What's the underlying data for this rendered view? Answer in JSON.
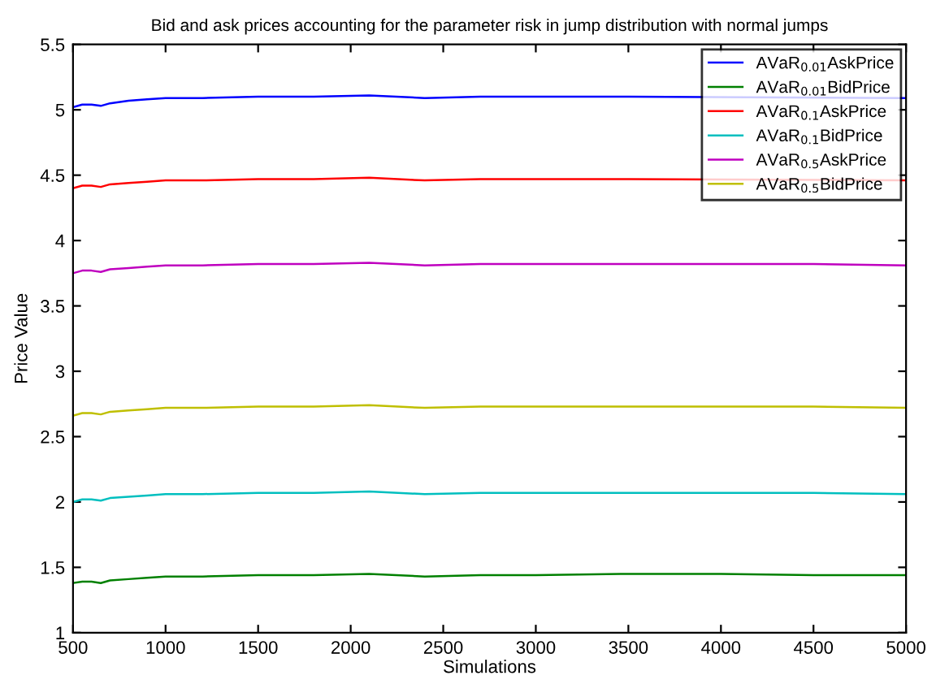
{
  "chart_data": {
    "type": "line",
    "title": "Bid and ask prices accounting for the parameter risk in jump distribution with normal jumps",
    "xlabel": "Simulations",
    "ylabel": "Price Value",
    "x": [
      500,
      550,
      600,
      650,
      700,
      800,
      900,
      1000,
      1200,
      1500,
      1800,
      2100,
      2400,
      2700,
      3000,
      3500,
      4000,
      4500,
      5000
    ],
    "series": [
      {
        "name": "AVaR$_{0.01}$AskPrice",
        "color": "#0000ff",
        "x": [
          500,
          550,
          600,
          650,
          700,
          800,
          900,
          1000,
          1200,
          1500,
          1800,
          2100,
          2400,
          2700,
          3000,
          3500,
          5000
        ],
        "values": [
          5.02,
          5.04,
          5.04,
          5.03,
          5.05,
          5.07,
          5.08,
          5.09,
          5.09,
          5.1,
          5.1,
          5.11,
          5.09,
          5.1,
          5.1,
          5.1,
          5.09
        ]
      },
      {
        "name": "AVaR$_{0.01}$BidPrice",
        "color": "#008000",
        "values": [
          1.38,
          1.39,
          1.39,
          1.38,
          1.4,
          1.41,
          1.42,
          1.43,
          1.43,
          1.44,
          1.44,
          1.45,
          1.43,
          1.44,
          1.44,
          1.45,
          1.45,
          1.44,
          1.44
        ]
      },
      {
        "name": "AVaR$_{0.1}$AskPrice",
        "color": "#ff0000",
        "x": [
          500,
          550,
          600,
          650,
          700,
          800,
          900,
          1000,
          1200,
          1500,
          1800,
          2100,
          2400,
          2700,
          3000,
          3500,
          5000
        ],
        "values": [
          4.4,
          4.42,
          4.42,
          4.41,
          4.43,
          4.44,
          4.45,
          4.46,
          4.46,
          4.47,
          4.47,
          4.48,
          4.46,
          4.47,
          4.47,
          4.47,
          4.46
        ]
      },
      {
        "name": "AVaR$_{0.1}$BidPrice",
        "color": "#00bfbf",
        "values": [
          2.0,
          2.02,
          2.02,
          2.01,
          2.03,
          2.04,
          2.05,
          2.06,
          2.06,
          2.07,
          2.07,
          2.08,
          2.06,
          2.07,
          2.07,
          2.07,
          2.07,
          2.07,
          2.06
        ]
      },
      {
        "name": "AVaR$_{0.5}$AskPrice",
        "color": "#bf00bf",
        "values": [
          3.75,
          3.77,
          3.77,
          3.76,
          3.78,
          3.79,
          3.8,
          3.81,
          3.81,
          3.82,
          3.82,
          3.83,
          3.81,
          3.82,
          3.82,
          3.82,
          3.82,
          3.82,
          3.81
        ]
      },
      {
        "name": "AVaR$_{0.5}$BidPrice",
        "color": "#bfbf00",
        "values": [
          2.66,
          2.68,
          2.68,
          2.67,
          2.69,
          2.7,
          2.71,
          2.72,
          2.72,
          2.73,
          2.73,
          2.74,
          2.72,
          2.73,
          2.73,
          2.73,
          2.73,
          2.73,
          2.72
        ]
      }
    ],
    "xlim": [
      500,
      5000
    ],
    "ylim": [
      1,
      5.5
    ],
    "xticks": [
      500,
      1000,
      1500,
      2000,
      2500,
      3000,
      3500,
      4000,
      4500,
      5000
    ],
    "yticks": [
      1,
      1.5,
      2,
      2.5,
      3,
      3.5,
      4,
      4.5,
      5,
      5.5
    ],
    "legend": "top right",
    "grid": false,
    "marker": "none",
    "line_style": "solid"
  }
}
